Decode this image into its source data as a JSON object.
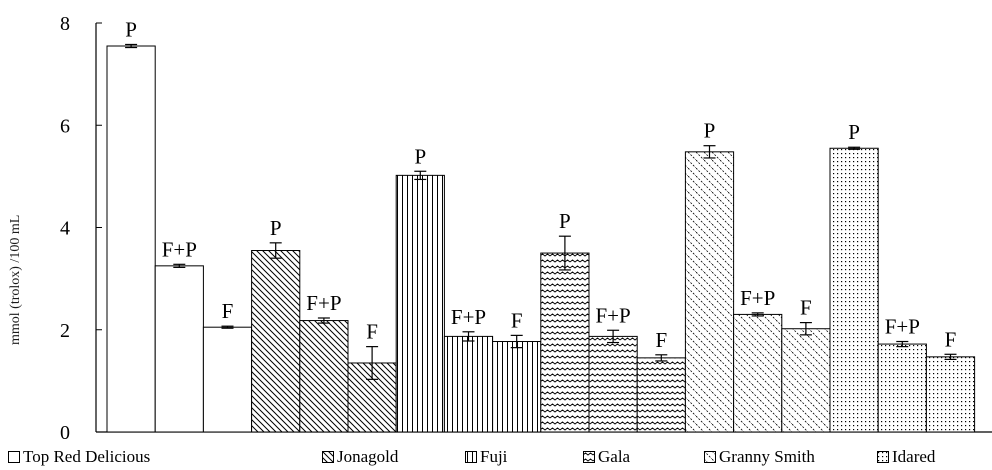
{
  "chart_data": {
    "type": "bar",
    "title": "",
    "xlabel": "",
    "ylabel": "mmol (trolox) /100 mL",
    "ylim": [
      0,
      8
    ],
    "yticks": [
      0,
      2,
      4,
      6,
      8
    ],
    "grid": false,
    "legend_position": "bottom",
    "bar_labels": [
      "P",
      "F+P",
      "F",
      "P",
      "F+P",
      "F",
      "P",
      "F+P",
      "F",
      "P",
      "F+P",
      "F",
      "P",
      "F+P",
      "F",
      "P",
      "F+P",
      "F"
    ],
    "groups": [
      {
        "name": "Top Red Delicious",
        "pattern": "blank",
        "values": [
          7.55,
          3.25,
          2.05
        ],
        "errors": [
          0.03,
          0.03,
          0.02
        ]
      },
      {
        "name": "Jonagold",
        "pattern": "diag-down",
        "values": [
          3.55,
          2.18,
          1.35
        ],
        "errors": [
          0.15,
          0.05,
          0.32
        ]
      },
      {
        "name": "Fuji",
        "pattern": "vertical",
        "values": [
          5.02,
          1.87,
          1.77
        ],
        "errors": [
          0.08,
          0.09,
          0.12
        ]
      },
      {
        "name": "Gala",
        "pattern": "wave",
        "values": [
          3.5,
          1.87,
          1.45
        ],
        "errors": [
          0.33,
          0.12,
          0.06
        ]
      },
      {
        "name": "Granny Smith",
        "pattern": "dense-diag",
        "values": [
          5.48,
          2.3,
          2.02
        ],
        "errors": [
          0.12,
          0.03,
          0.12
        ]
      },
      {
        "name": "Idared",
        "pattern": "dots",
        "values": [
          5.55,
          1.72,
          1.47
        ],
        "errors": [
          0.02,
          0.05,
          0.05
        ]
      }
    ],
    "colors": {
      "bar_fill": "#ffffff",
      "stroke": "#000000",
      "ylabel": "#1a1a1a"
    }
  }
}
